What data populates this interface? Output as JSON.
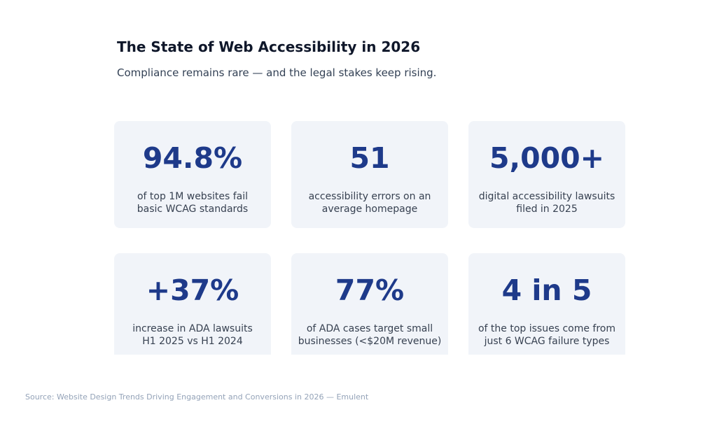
{
  "header": {
    "title": "The State of Web Accessibility in 2026",
    "subtitle": "Compliance remains rare — and the legal stakes keep rising."
  },
  "cards": [
    {
      "value": "94.8%",
      "line1": "of top 1M websites fail",
      "line2": "basic WCAG standards"
    },
    {
      "value": "51",
      "line1": "accessibility errors on an",
      "line2": "average homepage"
    },
    {
      "value": "5,000+",
      "line1": "digital accessibility lawsuits",
      "line2": "filed in 2025"
    },
    {
      "value": "+37%",
      "line1": "increase in ADA lawsuits",
      "line2": "H1 2025 vs H1 2024"
    },
    {
      "value": "77%",
      "line1": "of ADA cases target small",
      "line2": "businesses (<$20M revenue)"
    },
    {
      "value": "4 in 5",
      "line1": "of the top issues come from",
      "line2": "just 6 WCAG failure types"
    }
  ],
  "footer": {
    "source": "Source: Website Design Trends Driving Engagement and Conversions in 2026 — Emulent"
  },
  "colors": {
    "accent": "#1e3a8a",
    "card_background": "#f1f4f9",
    "title": "#0f172a"
  }
}
